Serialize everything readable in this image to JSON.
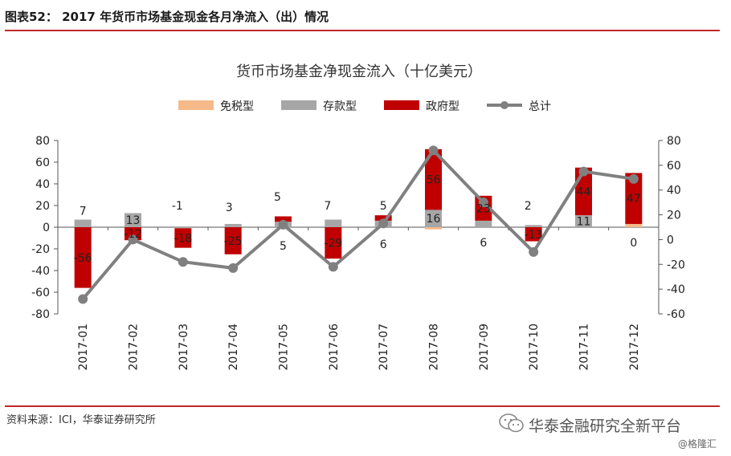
{
  "header": {
    "figure_title": "图表52： 2017 年货币市场基金现金各月净流入（出）情况"
  },
  "source_text": "资料来源：ICI，华泰证券研究所",
  "watermark": {
    "main": "华泰金融研究全新平台",
    "sub": "@格隆汇"
  },
  "colors": {
    "accent_rule": "#c0272d",
    "tax_free": "#f5b98a",
    "taxable": "#a6a6a6",
    "government": "#c00000",
    "total": "#808080"
  },
  "chart_data": {
    "type": "bar",
    "stacked": true,
    "title": "货币市场基金净现金流入（十亿美元）",
    "categories": [
      "2017-01",
      "2017-02",
      "2017-03",
      "2017-04",
      "2017-05",
      "2017-06",
      "2017-07",
      "2017-08",
      "2017-09",
      "2017-10",
      "2017-11",
      "2017-12"
    ],
    "series": [
      {
        "name": "免税型",
        "kind": "bar",
        "values": [
          0,
          0,
          0,
          0,
          0,
          0,
          0,
          -2,
          0,
          0,
          0,
          3
        ]
      },
      {
        "name": "存款型",
        "kind": "bar",
        "values": [
          7,
          13,
          -1,
          3,
          5,
          7,
          6,
          16,
          6,
          2,
          11,
          0
        ]
      },
      {
        "name": "政府型",
        "kind": "bar",
        "values": [
          -56,
          -12,
          -18,
          -25,
          5,
          -29,
          5,
          56,
          23,
          -13,
          44,
          47
        ]
      },
      {
        "name": "总计",
        "kind": "line",
        "axis": "right",
        "values": [
          -48,
          0,
          -18,
          -23,
          12,
          -22,
          13,
          72,
          30,
          -10,
          55,
          49
        ]
      }
    ],
    "data_labels": [
      {
        "category": "2017-01",
        "series": "存款型",
        "text": "7"
      },
      {
        "category": "2017-01",
        "series": "政府型",
        "text": "-56"
      },
      {
        "category": "2017-02",
        "series": "存款型",
        "text": "13"
      },
      {
        "category": "2017-02",
        "series": "政府型",
        "text": "-12"
      },
      {
        "category": "2017-03",
        "series": "存款型",
        "text": "-1"
      },
      {
        "category": "2017-03",
        "series": "政府型",
        "text": "-18"
      },
      {
        "category": "2017-04",
        "series": "存款型",
        "text": "3"
      },
      {
        "category": "2017-04",
        "series": "政府型",
        "text": "-25"
      },
      {
        "category": "2017-05",
        "series": "存款型",
        "text": "5"
      },
      {
        "category": "2017-05",
        "series": "政府型",
        "text": "5"
      },
      {
        "category": "2017-06",
        "series": "存款型",
        "text": "7"
      },
      {
        "category": "2017-06",
        "series": "政府型",
        "text": "-29"
      },
      {
        "category": "2017-07",
        "series": "政府型",
        "text": "5"
      },
      {
        "category": "2017-07",
        "series": "存款型",
        "text": "6"
      },
      {
        "category": "2017-08",
        "series": "政府型",
        "text": "56"
      },
      {
        "category": "2017-08",
        "series": "存款型",
        "text": "16"
      },
      {
        "category": "2017-09",
        "series": "政府型",
        "text": "23"
      },
      {
        "category": "2017-09",
        "series": "存款型",
        "text": "6"
      },
      {
        "category": "2017-10",
        "series": "存款型",
        "text": "2"
      },
      {
        "category": "2017-10",
        "series": "政府型",
        "text": "-13"
      },
      {
        "category": "2017-11",
        "series": "政府型",
        "text": "44"
      },
      {
        "category": "2017-11",
        "series": "存款型",
        "text": "11"
      },
      {
        "category": "2017-12",
        "series": "政府型",
        "text": "47"
      },
      {
        "category": "2017-12",
        "series": "存款型",
        "text": "0"
      }
    ],
    "left_axis": {
      "ylim": [
        -80,
        80
      ],
      "ticks": [
        -80,
        -60,
        -40,
        -20,
        0,
        20,
        40,
        60,
        80
      ]
    },
    "right_axis": {
      "ylim": [
        -60,
        80
      ],
      "ticks": [
        -60,
        -40,
        -20,
        0,
        20,
        40,
        60,
        80
      ]
    },
    "legend_position": "top-center",
    "grid": false
  }
}
